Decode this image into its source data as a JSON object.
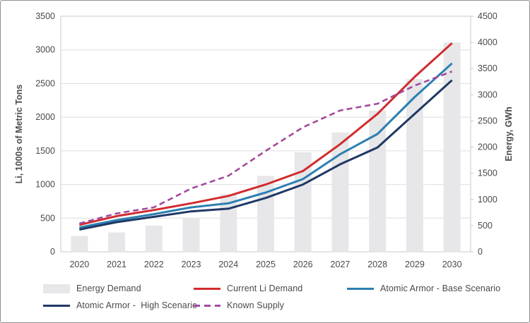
{
  "chart_data": {
    "type": "combo-bar-line",
    "x": [
      "2020",
      "2021",
      "2022",
      "2023",
      "2024",
      "2025",
      "2026",
      "2027",
      "2028",
      "2029",
      "2030"
    ],
    "series": [
      {
        "name": "Energy Demand",
        "kind": "bar",
        "axis": "right",
        "color": "#e7e7e9",
        "values": [
          300,
          370,
          500,
          650,
          1100,
          1450,
          1900,
          2280,
          2700,
          3300,
          4000
        ]
      },
      {
        "name": "Current Li Demand",
        "kind": "line",
        "axis": "left",
        "color": "#d12b2e",
        "values": [
          400,
          530,
          620,
          720,
          830,
          1000,
          1200,
          1600,
          2050,
          2600,
          3100
        ]
      },
      {
        "name": "Atomic Armor - Base Scenario",
        "kind": "line",
        "axis": "left",
        "color": "#2c7fb2",
        "values": [
          360,
          470,
          560,
          660,
          720,
          880,
          1080,
          1450,
          1750,
          2300,
          2800
        ]
      },
      {
        "name": "Atomic Armor -  High Scenario",
        "kind": "line",
        "axis": "left",
        "color": "#1f3864",
        "values": [
          330,
          440,
          520,
          600,
          640,
          800,
          1000,
          1300,
          1550,
          2050,
          2550
        ]
      },
      {
        "name": "Known Supply",
        "kind": "line",
        "dashed": true,
        "axis": "left",
        "color": "#a34a9d",
        "values": [
          420,
          570,
          660,
          940,
          1130,
          1500,
          1850,
          2100,
          2200,
          2470,
          2680
        ]
      }
    ],
    "left_axis": {
      "label": "Li, 1000s of Metric Tons",
      "min": 0,
      "max": 3500,
      "step": 500
    },
    "right_axis": {
      "label": "Energy, GWh",
      "min": 0,
      "max": 4500,
      "step": 500
    },
    "grid": true,
    "legend_position": "bottom"
  },
  "colors": {
    "grid": "#dedede",
    "plot_border": "#c9c9c9",
    "axis_text": "#4a4a4a",
    "background": "#ffffff"
  }
}
